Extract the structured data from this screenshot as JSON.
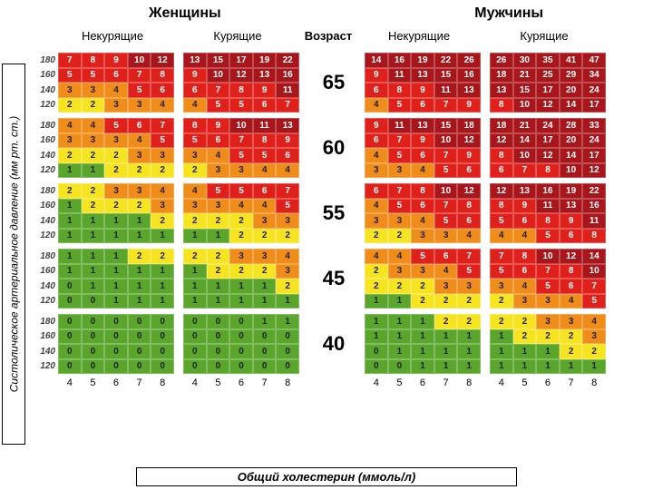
{
  "headers": {
    "women": "Женщины",
    "men": "Мужчины",
    "nonsmoking": "Некурящие",
    "smoking": "Курящие",
    "age": "Возраст"
  },
  "y_axis": "Систолическое артериальное давление (мм рт. ст.)",
  "x_axis": "Общий холестерин (ммоль/л)",
  "bp_levels": [
    "180",
    "160",
    "140",
    "120"
  ],
  "chol_levels": [
    "4",
    "5",
    "6",
    "7",
    "8"
  ],
  "ages": [
    "65",
    "60",
    "55",
    "45",
    "40"
  ],
  "colors": {
    "darkred": "#a8151a",
    "red": "#e0201b",
    "orange": "#f08c1a",
    "yellow": "#f6e420",
    "green": "#5aa62d",
    "text_on_dark": "#ffffff",
    "text_on_light": "#222222"
  },
  "blocks": {
    "65": {
      "w_ns": [
        [
          7,
          8,
          9,
          10,
          12
        ],
        [
          5,
          5,
          6,
          7,
          8
        ],
        [
          3,
          3,
          4,
          5,
          6
        ],
        [
          2,
          2,
          3,
          3,
          4
        ]
      ],
      "w_s": [
        [
          13,
          15,
          17,
          19,
          22
        ],
        [
          9,
          10,
          12,
          13,
          16
        ],
        [
          6,
          7,
          8,
          9,
          11
        ],
        [
          4,
          5,
          5,
          6,
          7
        ]
      ],
      "m_ns": [
        [
          14,
          16,
          19,
          22,
          26
        ],
        [
          9,
          11,
          13,
          15,
          16
        ],
        [
          6,
          8,
          9,
          11,
          13
        ],
        [
          4,
          5,
          6,
          7,
          9
        ]
      ],
      "m_s": [
        [
          26,
          30,
          35,
          41,
          47
        ],
        [
          18,
          21,
          25,
          29,
          34
        ],
        [
          13,
          15,
          17,
          20,
          24
        ],
        [
          8,
          10,
          12,
          14,
          17
        ]
      ]
    },
    "60": {
      "w_ns": [
        [
          4,
          4,
          5,
          6,
          7
        ],
        [
          3,
          3,
          3,
          4,
          5
        ],
        [
          2,
          2,
          2,
          3,
          3
        ],
        [
          1,
          1,
          2,
          2,
          2
        ]
      ],
      "w_s": [
        [
          8,
          9,
          10,
          11,
          13
        ],
        [
          5,
          6,
          7,
          8,
          9
        ],
        [
          3,
          4,
          5,
          5,
          6
        ],
        [
          2,
          3,
          3,
          4,
          4
        ]
      ],
      "m_ns": [
        [
          9,
          11,
          13,
          15,
          18
        ],
        [
          6,
          7,
          9,
          10,
          12
        ],
        [
          4,
          5,
          6,
          7,
          9
        ],
        [
          3,
          3,
          4,
          5,
          6
        ]
      ],
      "m_s": [
        [
          18,
          21,
          24,
          28,
          33
        ],
        [
          12,
          14,
          17,
          20,
          24
        ],
        [
          8,
          10,
          12,
          14,
          17
        ],
        [
          6,
          7,
          8,
          10,
          12
        ]
      ]
    },
    "55": {
      "w_ns": [
        [
          2,
          2,
          3,
          3,
          4
        ],
        [
          1,
          2,
          2,
          2,
          3
        ],
        [
          1,
          1,
          1,
          1,
          2
        ],
        [
          1,
          1,
          1,
          1,
          1
        ]
      ],
      "w_s": [
        [
          4,
          5,
          5,
          6,
          7
        ],
        [
          3,
          3,
          4,
          4,
          5
        ],
        [
          2,
          2,
          2,
          3,
          3
        ],
        [
          1,
          1,
          2,
          2,
          2
        ]
      ],
      "m_ns": [
        [
          6,
          7,
          8,
          10,
          12
        ],
        [
          4,
          5,
          6,
          7,
          8
        ],
        [
          3,
          3,
          4,
          5,
          6
        ],
        [
          2,
          2,
          3,
          3,
          4
        ]
      ],
      "m_s": [
        [
          12,
          13,
          16,
          19,
          22
        ],
        [
          8,
          9,
          11,
          13,
          16
        ],
        [
          5,
          6,
          8,
          9,
          11
        ],
        [
          4,
          4,
          5,
          6,
          8
        ]
      ]
    },
    "45": {
      "w_ns": [
        [
          1,
          1,
          1,
          2,
          2
        ],
        [
          1,
          1,
          1,
          1,
          1
        ],
        [
          0,
          1,
          1,
          1,
          1
        ],
        [
          0,
          0,
          1,
          1,
          1
        ]
      ],
      "w_s": [
        [
          2,
          2,
          3,
          3,
          4
        ],
        [
          1,
          2,
          2,
          2,
          3
        ],
        [
          1,
          1,
          1,
          1,
          2
        ],
        [
          1,
          1,
          1,
          1,
          1
        ]
      ],
      "m_ns": [
        [
          4,
          4,
          5,
          6,
          7
        ],
        [
          2,
          3,
          3,
          4,
          5
        ],
        [
          2,
          2,
          2,
          3,
          3
        ],
        [
          1,
          1,
          2,
          2,
          2
        ]
      ],
      "m_s": [
        [
          7,
          8,
          10,
          12,
          14
        ],
        [
          5,
          6,
          7,
          8,
          10
        ],
        [
          3,
          4,
          5,
          6,
          7
        ],
        [
          2,
          3,
          3,
          4,
          5
        ]
      ]
    },
    "40": {
      "w_ns": [
        [
          0,
          0,
          0,
          0,
          0
        ],
        [
          0,
          0,
          0,
          0,
          0
        ],
        [
          0,
          0,
          0,
          0,
          0
        ],
        [
          0,
          0,
          0,
          0,
          0
        ]
      ],
      "w_s": [
        [
          0,
          0,
          0,
          1,
          1
        ],
        [
          0,
          0,
          0,
          0,
          0
        ],
        [
          0,
          0,
          0,
          0,
          0
        ],
        [
          0,
          0,
          0,
          0,
          0
        ]
      ],
      "m_ns": [
        [
          1,
          1,
          1,
          2,
          2
        ],
        [
          1,
          1,
          1,
          1,
          1
        ],
        [
          0,
          1,
          1,
          1,
          1
        ],
        [
          0,
          0,
          1,
          1,
          1
        ]
      ],
      "m_s": [
        [
          2,
          2,
          3,
          3,
          4
        ],
        [
          1,
          2,
          2,
          2,
          3
        ],
        [
          1,
          1,
          1,
          2,
          2
        ],
        [
          1,
          1,
          1,
          1,
          1
        ]
      ]
    }
  }
}
